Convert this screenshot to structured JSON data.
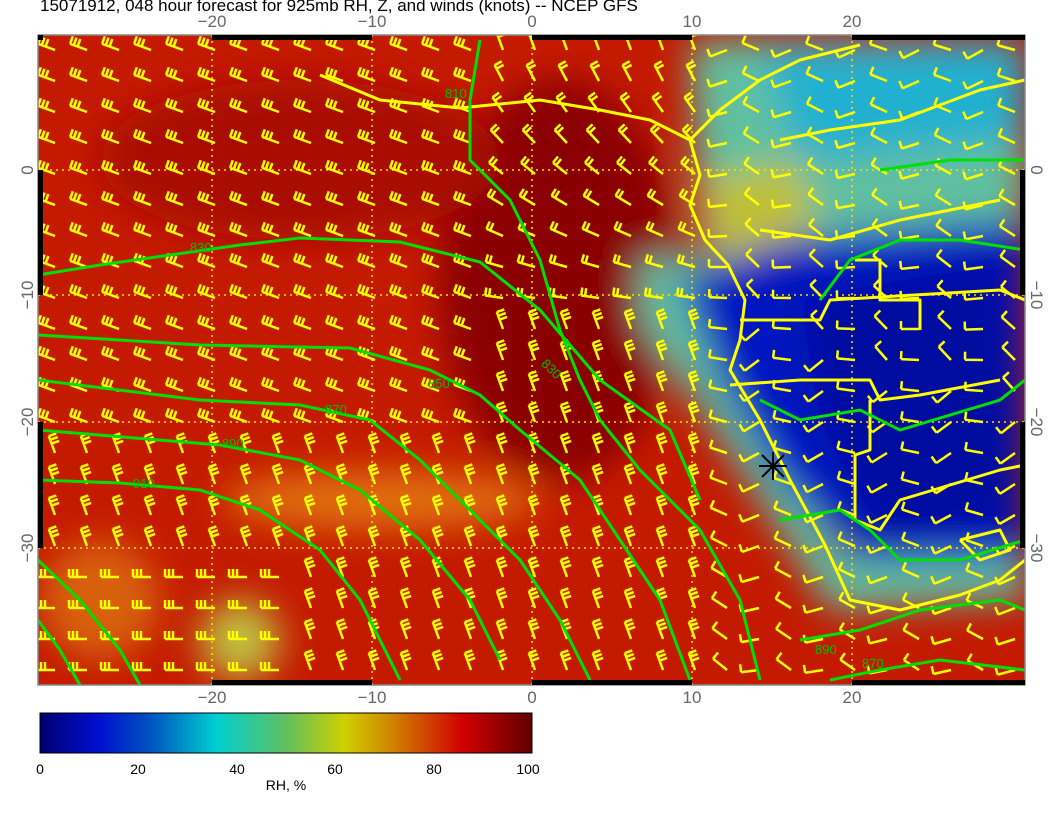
{
  "title": "15071912, 048 hour forecast for 925mb RH, Z, and winds (knots) -- NCEP GFS",
  "map": {
    "lon_ticks": [
      "−20",
      "−10",
      "0",
      "10",
      "20"
    ],
    "lat_ticks": [
      "0",
      "−10",
      "−20",
      "−30"
    ],
    "contour_labels": [
      "810",
      "830",
      "850",
      "870",
      "890",
      "910",
      "830",
      "870",
      "890"
    ],
    "colors": {
      "contour": "#00e000",
      "coast": "#ffff00",
      "barb": "#ffff00",
      "grid": "#ffe000"
    }
  },
  "colorbar": {
    "ticks": [
      "0",
      "20",
      "40",
      "60",
      "80",
      "100"
    ],
    "label": "RH, %",
    "range": [
      0,
      100
    ],
    "colors": [
      "#000070",
      "#0010d0",
      "#0050c0",
      "#00d0d0",
      "#60c060",
      "#d0d000",
      "#d08000",
      "#d00000",
      "#600000"
    ]
  }
}
